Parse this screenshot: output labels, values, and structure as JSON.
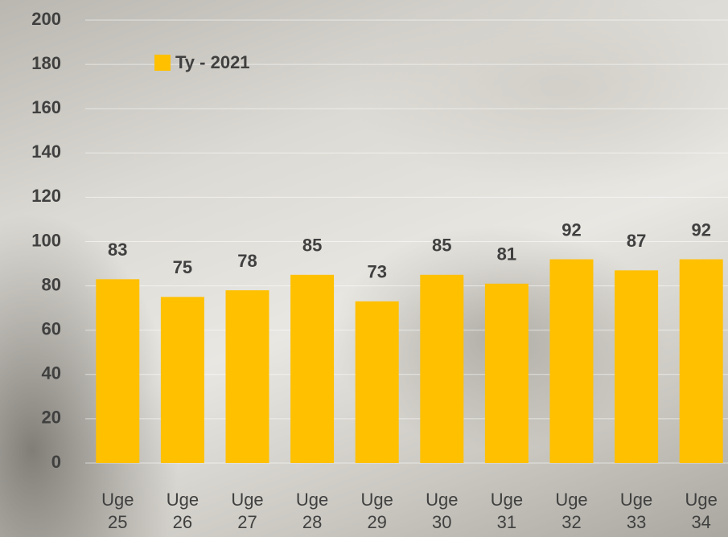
{
  "chart_data": {
    "type": "bar",
    "categories": [
      "Uge 25",
      "Uge 26",
      "Uge 27",
      "Uge 28",
      "Uge 29",
      "Uge 30",
      "Uge 31",
      "Uge 32",
      "Uge 33",
      "Uge 34"
    ],
    "series": [
      {
        "name": "Ty - 2021",
        "color": "#ffc000",
        "values": [
          83,
          75,
          78,
          85,
          73,
          85,
          81,
          92,
          87,
          92
        ]
      }
    ],
    "ylim": [
      0,
      200
    ],
    "yticks": [
      0,
      20,
      40,
      60,
      80,
      100,
      120,
      140,
      160,
      180,
      200
    ],
    "grid": true
  }
}
